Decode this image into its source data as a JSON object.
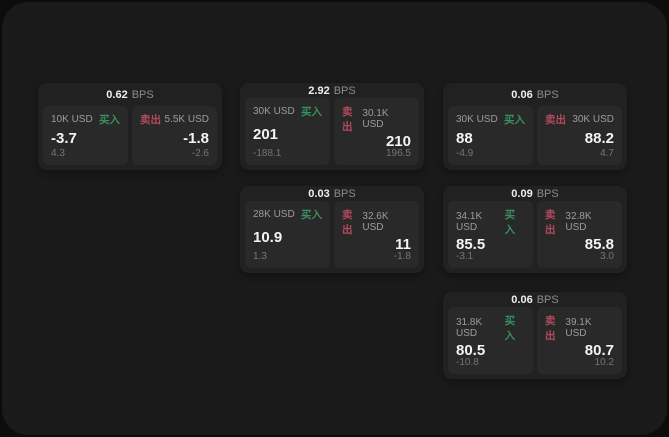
{
  "colors": {
    "backdrop": "#0c0c0c",
    "surface": "#1a1a1a",
    "card": "#212121",
    "tile": "#292929",
    "text_primary": "#f4f4f4",
    "text_secondary": "#9c9c9c",
    "text_muted": "#757575",
    "buy": "#3a8f5f",
    "sell": "#b04a5c"
  },
  "labels": {
    "bps_unit": "BPS",
    "buy": "买入",
    "sell": "卖出"
  },
  "cards": [
    {
      "bps": "0.62",
      "buy": {
        "amount": "10K USD",
        "price": "-3.7",
        "delta": "4.3"
      },
      "sell": {
        "amount": "5.5K USD",
        "price": "-1.8",
        "delta": "-2.6"
      }
    },
    {
      "bps": "2.92",
      "buy": {
        "amount": "30K USD",
        "price": "201",
        "delta": "-188.1"
      },
      "sell": {
        "amount": "30.1K USD",
        "price": "210",
        "delta": "196.5"
      }
    },
    {
      "bps": "0.06",
      "buy": {
        "amount": "30K USD",
        "price": "88",
        "delta": "-4.9"
      },
      "sell": {
        "amount": "30K USD",
        "price": "88.2",
        "delta": "4.7"
      }
    },
    {
      "bps": "0.03",
      "buy": {
        "amount": "28K USD",
        "price": "10.9",
        "delta": "1.3"
      },
      "sell": {
        "amount": "32.6K USD",
        "price": "11",
        "delta": "-1.8"
      }
    },
    {
      "bps": "0.09",
      "buy": {
        "amount": "34.1K USD",
        "price": "85.5",
        "delta": "-3.1"
      },
      "sell": {
        "amount": "32.8K USD",
        "price": "85.8",
        "delta": "3.0"
      }
    },
    {
      "bps": "0.06",
      "buy": {
        "amount": "31.8K USD",
        "price": "80.5",
        "delta": "-10.8"
      },
      "sell": {
        "amount": "39.1K USD",
        "price": "80.7",
        "delta": "10.2"
      }
    }
  ]
}
